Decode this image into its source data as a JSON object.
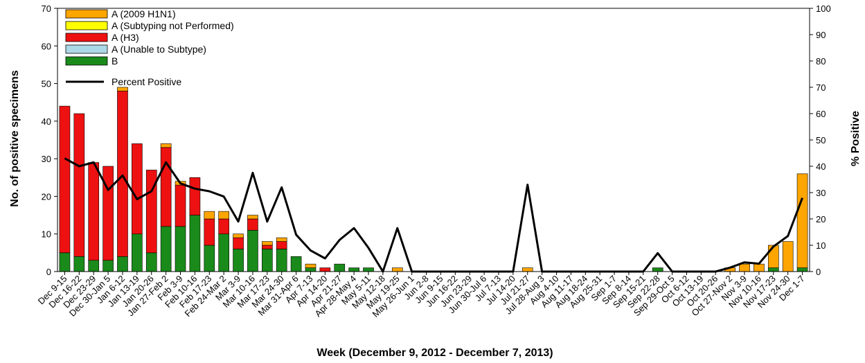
{
  "chart_data": {
    "type": "bar",
    "stacked": true,
    "xlabel": "Week (December 9, 2012 - December 7, 2013)",
    "ylabel": "No. of positive specimens",
    "y2label": "% Positive",
    "ylim": [
      0,
      70
    ],
    "y2lim": [
      0,
      100
    ],
    "yticks": [
      0,
      10,
      20,
      30,
      40,
      50,
      60,
      70
    ],
    "y2ticks": [
      0,
      10,
      20,
      30,
      40,
      50,
      60,
      70,
      80,
      90,
      100
    ],
    "legend_position": "top-left",
    "grid": false,
    "categories": [
      "Dec 9-15",
      "Dec 16-22",
      "Dec 23-29",
      "Dec 30-Jan 5",
      "Jan 6-12",
      "Jan 13-19",
      "Jan 20-26",
      "Jan 27-Feb 2",
      "Feb 3-9",
      "Feb 10-16",
      "Feb 17-23",
      "Feb 24-Mar 2",
      "Mar 3-9",
      "Mar 10-16",
      "Mar 17-23",
      "Mar 24-30",
      "Mar 31-Apr 6",
      "Apr 7-13",
      "Apr 14-20",
      "Apr 21-27",
      "Apr 28-May 4",
      "May 5-11",
      "May 12-18",
      "May 19-25",
      "May 26-Jun 1",
      "Jun 2-8",
      "Jun 9-15",
      "Jun 16-22",
      "Jun 23-29",
      "Jun 30-Jul 6",
      "Jul 7-13",
      "Jul 14-20",
      "Jul 21-27",
      "Jul 28-Aug 3",
      "Aug 4-10",
      "Aug 11-17",
      "Aug 18-24",
      "Aug 25-31",
      "Sep 1-7",
      "Sep 8-14",
      "Sep 15-21",
      "Sep 22-28",
      "Sep 29-Oct 5",
      "Oct 6-12",
      "Oct 13-19",
      "Oct 20-26",
      "Oct 27-Nov 2",
      "Nov 3-9",
      "Nov 10-16",
      "Nov 17-23",
      "Nov 24-30",
      "Dec 1-7"
    ],
    "series": [
      {
        "name": "B",
        "color": "#1a8a1a",
        "values": [
          5,
          4,
          3,
          3,
          4,
          10,
          5,
          12,
          12,
          15,
          7,
          10,
          6,
          11,
          6,
          6,
          4,
          1,
          0,
          2,
          1,
          1,
          0,
          0,
          0,
          0,
          0,
          0,
          0,
          0,
          0,
          0,
          0,
          0,
          0,
          0,
          0,
          0,
          0,
          0,
          0,
          1,
          0,
          0,
          0,
          0,
          0,
          0,
          0,
          1,
          0,
          1
        ]
      },
      {
        "name": "A (Unable to Subtype)",
        "color": "#add8e6",
        "values": [
          0,
          0,
          0,
          0,
          0,
          0,
          0,
          0,
          0,
          0,
          0,
          0,
          0,
          0,
          0,
          0,
          0,
          0,
          0,
          0,
          0,
          0,
          0,
          0,
          0,
          0,
          0,
          0,
          0,
          0,
          0,
          0,
          0,
          0,
          0,
          0,
          0,
          0,
          0,
          0,
          0,
          0,
          0,
          0,
          0,
          0,
          0,
          0,
          0,
          0,
          0,
          0
        ]
      },
      {
        "name": "A (H3)",
        "color": "#ee1111",
        "values": [
          39,
          38,
          26,
          25,
          44,
          24,
          22,
          21,
          11,
          10,
          7,
          4,
          3,
          3,
          1,
          2,
          0,
          0,
          1,
          0,
          0,
          0,
          0,
          0,
          0,
          0,
          0,
          0,
          0,
          0,
          0,
          0,
          0,
          0,
          0,
          0,
          0,
          0,
          0,
          0,
          0,
          0,
          0,
          0,
          0,
          0,
          0,
          0,
          0,
          0,
          0,
          0
        ]
      },
      {
        "name": "A (Subtyping not Performed)",
        "color": "#ffff00",
        "values": [
          0,
          0,
          0,
          0,
          0,
          0,
          0,
          0,
          0,
          0,
          0,
          0,
          0,
          0,
          0,
          0,
          0,
          0,
          0,
          0,
          0,
          0,
          0,
          0,
          0,
          0,
          0,
          0,
          0,
          0,
          0,
          0,
          0,
          0,
          0,
          0,
          0,
          0,
          0,
          0,
          0,
          0,
          0,
          0,
          0,
          0,
          0,
          0,
          0,
          0,
          0,
          0
        ]
      },
      {
        "name": "A (2009 H1N1)",
        "color": "#ffa500",
        "values": [
          0,
          0,
          0,
          0,
          1,
          0,
          0,
          1,
          1,
          0,
          2,
          2,
          1,
          1,
          1,
          1,
          0,
          1,
          0,
          0,
          0,
          0,
          0,
          1,
          0,
          0,
          0,
          0,
          0,
          0,
          0,
          0,
          1,
          0,
          0,
          0,
          0,
          0,
          0,
          0,
          0,
          0,
          0,
          0,
          0,
          0,
          1,
          2,
          2,
          6,
          8,
          25
        ]
      }
    ],
    "line": {
      "name": "Percent Positive",
      "color": "#000000",
      "axis": "y2",
      "values": [
        43,
        40,
        41.5,
        31,
        36.5,
        27.5,
        30.5,
        41.5,
        33.5,
        31.5,
        30.5,
        28.5,
        19,
        37.5,
        19,
        32,
        14,
        8,
        5,
        12,
        16.5,
        9,
        0,
        16.5,
        0,
        0,
        0,
        0,
        0,
        0,
        0,
        0,
        33,
        0,
        0,
        0,
        0,
        0,
        0,
        0,
        0,
        7,
        0,
        0,
        0,
        0,
        1.5,
        3.5,
        3,
        9.5,
        13.5,
        28
      ]
    },
    "legend_order": [
      "A (2009 H1N1)",
      "A (Subtyping not Performed)",
      "A (H3)",
      "A (Unable to Subtype)",
      "B"
    ]
  }
}
